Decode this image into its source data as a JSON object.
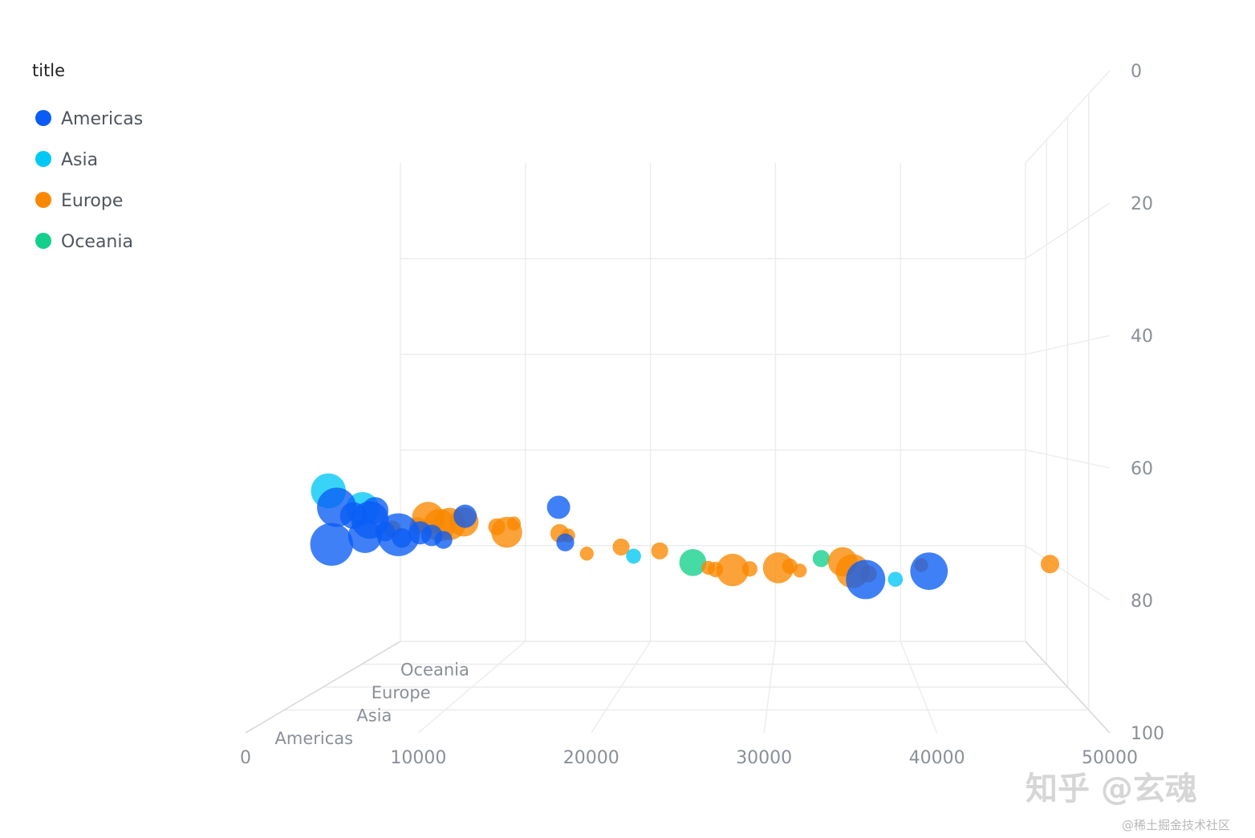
{
  "chart_data": {
    "type": "scatter",
    "subtype": "3d-bubble",
    "legend": {
      "title": "title",
      "placement": "top-left",
      "entries": [
        {
          "name": "Americas",
          "color": "#0a5cf5"
        },
        {
          "name": "Asia",
          "color": "#00c8f5"
        },
        {
          "name": "Europe",
          "color": "#fa8800"
        },
        {
          "name": "Oceania",
          "color": "#12cf8c"
        }
      ]
    },
    "x_axis": {
      "ticks": [
        "0",
        "10000",
        "20000",
        "30000",
        "40000",
        "50000"
      ],
      "range": [
        0,
        50000
      ]
    },
    "y_axis": {
      "ticks": [
        "0",
        "20",
        "40",
        "60",
        "80",
        "100"
      ],
      "range": [
        0,
        100
      ]
    },
    "z_axis": {
      "categories": [
        "Americas",
        "Asia",
        "Europe",
        "Oceania"
      ]
    },
    "grid": true,
    "series": [
      {
        "name": "Americas",
        "points": [
          {
            "x": 4000,
            "y": 72.3,
            "size": 40
          },
          {
            "x": 4300,
            "y": 66.5,
            "size": 36
          },
          {
            "x": 5300,
            "y": 67.8,
            "size": 22
          },
          {
            "x": 6000,
            "y": 71.0,
            "size": 30
          },
          {
            "x": 6300,
            "y": 68.5,
            "size": 34
          },
          {
            "x": 6600,
            "y": 67.0,
            "size": 22
          },
          {
            "x": 7200,
            "y": 70.3,
            "size": 14
          },
          {
            "x": 8000,
            "y": 70.8,
            "size": 40
          },
          {
            "x": 8200,
            "y": 71.3,
            "size": 14
          },
          {
            "x": 9300,
            "y": 70.5,
            "size": 18
          },
          {
            "x": 10000,
            "y": 70.9,
            "size": 16
          },
          {
            "x": 10700,
            "y": 71.6,
            "size": 12
          },
          {
            "x": 12000,
            "y": 67.9,
            "size": 18
          },
          {
            "x": 18000,
            "y": 72.0,
            "size": 12
          },
          {
            "x": 17600,
            "y": 66.5,
            "size": 18
          },
          {
            "x": 36000,
            "y": 77.8,
            "size": 36
          },
          {
            "x": 39800,
            "y": 76.5,
            "size": 34
          }
        ]
      },
      {
        "name": "Asia",
        "points": [
          {
            "x": 1600,
            "y": 65.0,
            "size": 34
          },
          {
            "x": 3800,
            "y": 68.0,
            "size": 32
          },
          {
            "x": 21300,
            "y": 76.0,
            "size": 10
          },
          {
            "x": 38200,
            "y": 79.9,
            "size": 10
          }
        ]
      },
      {
        "name": "Europe",
        "points": [
          {
            "x": 3500,
            "y": 73.2,
            "size": 14
          },
          {
            "x": 5300,
            "y": 72.6,
            "size": 14
          },
          {
            "x": 6000,
            "y": 71.2,
            "size": 34
          },
          {
            "x": 6800,
            "y": 72.5,
            "size": 34
          },
          {
            "x": 7500,
            "y": 72.3,
            "size": 34
          },
          {
            "x": 8500,
            "y": 71.9,
            "size": 30
          },
          {
            "x": 10800,
            "y": 72.8,
            "size": 14
          },
          {
            "x": 11500,
            "y": 73.8,
            "size": 32
          },
          {
            "x": 12000,
            "y": 72.2,
            "size": 10
          },
          {
            "x": 15200,
            "y": 74.0,
            "size": 16
          },
          {
            "x": 15800,
            "y": 74.4,
            "size": 10
          },
          {
            "x": 17100,
            "y": 77.7,
            "size": 10
          },
          {
            "x": 19500,
            "y": 76.5,
            "size": 14
          },
          {
            "x": 22200,
            "y": 77.2,
            "size": 14
          },
          {
            "x": 25600,
            "y": 80.3,
            "size": 10
          },
          {
            "x": 26100,
            "y": 80.6,
            "size": 12
          },
          {
            "x": 27300,
            "y": 80.7,
            "size": 34
          },
          {
            "x": 28500,
            "y": 80.5,
            "size": 12
          },
          {
            "x": 30500,
            "y": 80.3,
            "size": 32
          },
          {
            "x": 31300,
            "y": 80.0,
            "size": 12
          },
          {
            "x": 32000,
            "y": 80.8,
            "size": 10
          },
          {
            "x": 35000,
            "y": 79.2,
            "size": 30
          },
          {
            "x": 35700,
            "y": 80.9,
            "size": 36
          },
          {
            "x": 36800,
            "y": 81.4,
            "size": 14
          },
          {
            "x": 40500,
            "y": 79.8,
            "size": 10
          },
          {
            "x": 49500,
            "y": 79.6,
            "size": 16
          }
        ]
      },
      {
        "name": "Oceania",
        "points": [
          {
            "x": 23800,
            "y": 82.0,
            "size": 30
          },
          {
            "x": 33600,
            "y": 81.2,
            "size": 16
          }
        ]
      }
    ]
  },
  "watermark": {
    "main": "知乎 @玄魂",
    "sub": "@稀土掘金技术社区"
  }
}
